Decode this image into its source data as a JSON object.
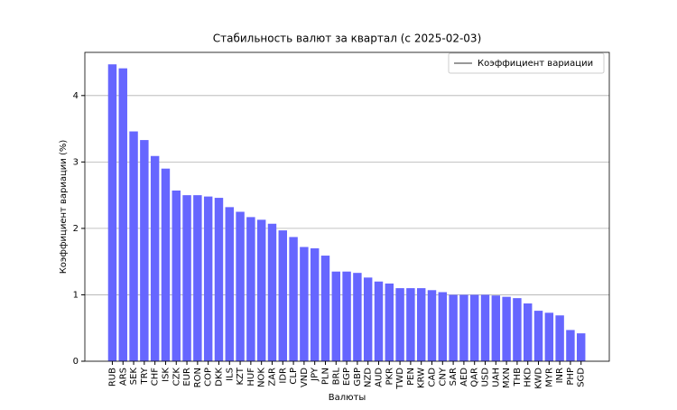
{
  "chart_data": {
    "type": "bar",
    "title": "Стабильность валют за квартал (с 2025-02-03)",
    "xlabel": "Валюты",
    "ylabel": "Коэффициент вариации (%)",
    "categories": [
      "RUB",
      "ARS",
      "SEK",
      "TRY",
      "CHF",
      "ISK",
      "CZK",
      "EUR",
      "RON",
      "COP",
      "DKK",
      "ILS",
      "KZT",
      "HUF",
      "NOK",
      "ZAR",
      "IDR",
      "CLP",
      "VND",
      "JPY",
      "PLN",
      "BRL",
      "EGP",
      "GBP",
      "NZD",
      "AUD",
      "PKR",
      "TWD",
      "PEN",
      "KRW",
      "CAD",
      "CNY",
      "SAR",
      "AED",
      "QAR",
      "USD",
      "UAH",
      "MXN",
      "THB",
      "HKD",
      "KWD",
      "MYR",
      "INR",
      "PHP",
      "SGD"
    ],
    "series": [
      {
        "name": "Коэффициент вариации",
        "color": "#6666ff",
        "values": [
          4.47,
          4.41,
          3.46,
          3.33,
          3.09,
          2.9,
          2.57,
          2.5,
          2.5,
          2.48,
          2.46,
          2.32,
          2.25,
          2.17,
          2.13,
          2.07,
          1.97,
          1.87,
          1.72,
          1.7,
          1.59,
          1.35,
          1.35,
          1.33,
          1.26,
          1.2,
          1.17,
          1.1,
          1.1,
          1.1,
          1.07,
          1.04,
          1.0,
          1.0,
          1.0,
          1.0,
          0.99,
          0.97,
          0.95,
          0.87,
          0.76,
          0.73,
          0.69,
          0.47,
          0.42
        ]
      }
    ],
    "ylim": [
      0,
      4.65
    ],
    "yticks": [
      0,
      1,
      2,
      3,
      4
    ],
    "grid": true,
    "legend": "upper right"
  }
}
